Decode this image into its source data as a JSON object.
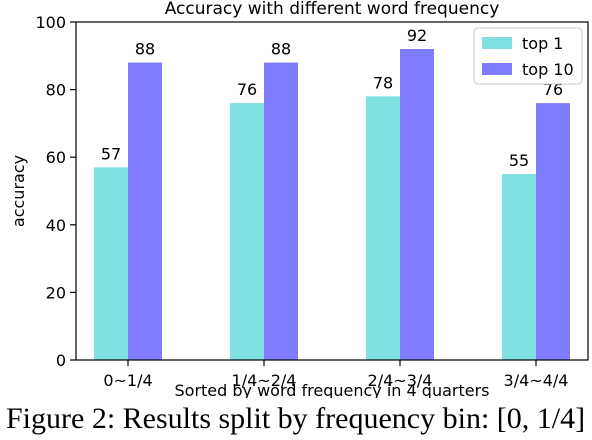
{
  "chart_data": {
    "type": "bar",
    "title": "Accuracy with different word frequency",
    "xlabel": "Sorted by word frequency in 4 quarters",
    "ylabel": "accuracy",
    "categories": [
      "0~1/4",
      "1/4~2/4",
      "2/4~3/4",
      "3/4~4/4"
    ],
    "series": [
      {
        "name": "top 1",
        "values": [
          57,
          76,
          78,
          55
        ],
        "labels": [
          "57",
          "76",
          "78",
          "55"
        ],
        "color": "#80dfdf"
      },
      {
        "name": "top 10",
        "values": [
          88,
          88,
          92,
          76
        ],
        "labels": [
          "88",
          "88",
          "92",
          "76"
        ],
        "color": "#807cff"
      }
    ],
    "ylim": [
      0,
      100
    ],
    "yticks": [
      0,
      20,
      40,
      60,
      80,
      100
    ],
    "legend": "top-right",
    "grid": false
  },
  "caption": "Figure 2: Results split by frequency bin: [0, 1/4]"
}
